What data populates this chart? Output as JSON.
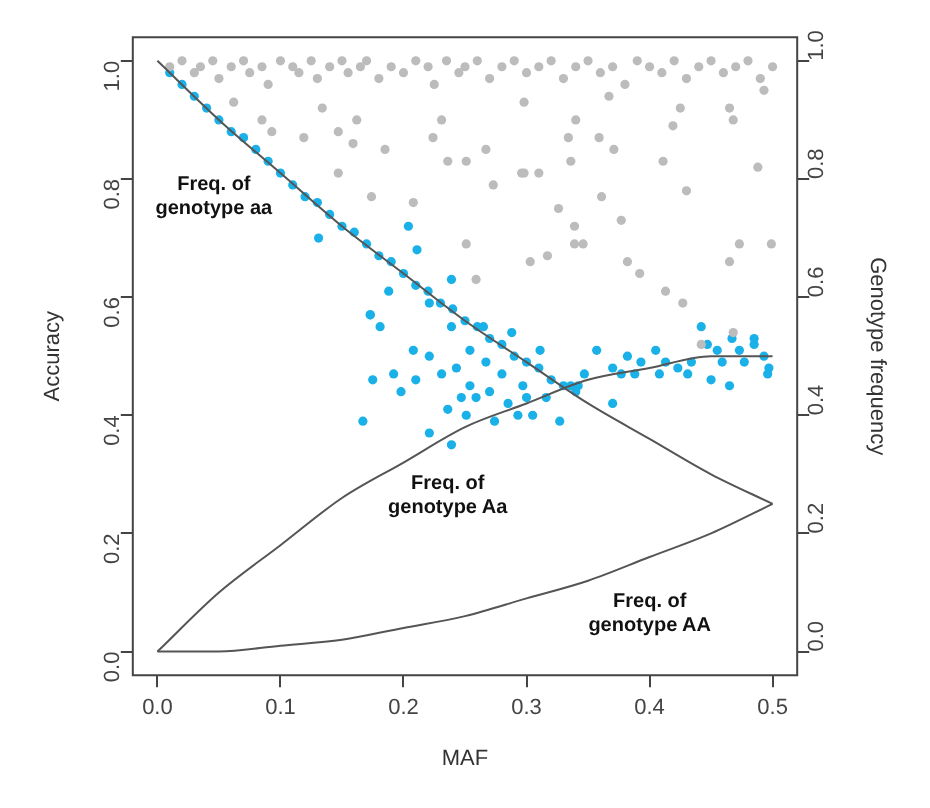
{
  "chart_data": {
    "type": "scatter",
    "xlabel": "MAF",
    "ylabel": "Accuracy",
    "y2label": "Genotype frequency",
    "xlim": [
      -0.02,
      0.52
    ],
    "ylim": [
      -0.04,
      1.04
    ],
    "y2lim": [
      -0.04,
      1.04
    ],
    "xticks": [
      {
        "value": 0,
        "label": "0.0"
      },
      0.1,
      0.2,
      0.3,
      0.4,
      0.5
    ],
    "yticks": [
      {
        "value": 0,
        "label": "0.0"
      },
      0.2,
      0.4,
      0.6,
      0.8,
      {
        "value": 1,
        "label": "1.0"
      }
    ],
    "y2ticks": [
      {
        "value": 0,
        "label": "0.0"
      },
      0.2,
      0.4,
      0.6,
      0.8,
      {
        "value": 1,
        "label": "1.0"
      }
    ],
    "grid": false,
    "legend": false,
    "marker": "circle",
    "series": [
      {
        "color": "#bcbcbc",
        "x": [
          0.01,
          0.02,
          0.03,
          0.035,
          0.045,
          0.05,
          0.06,
          0.07,
          0.075,
          0.085,
          0.09,
          0.1,
          0.11,
          0.115,
          0.125,
          0.13,
          0.14,
          0.15,
          0.155,
          0.165,
          0.17,
          0.18,
          0.19,
          0.2,
          0.21,
          0.22,
          0.225,
          0.235,
          0.245,
          0.25,
          0.26,
          0.27,
          0.28,
          0.29,
          0.3,
          0.31,
          0.32,
          0.33,
          0.34,
          0.35,
          0.36,
          0.37,
          0.38,
          0.39,
          0.4,
          0.41,
          0.42,
          0.43,
          0.44,
          0.45,
          0.46,
          0.47,
          0.48,
          0.49,
          0.5,
          0.062,
          0.085,
          0.093,
          0.119,
          0.134,
          0.162,
          0.147,
          0.185,
          0.159,
          0.147,
          0.174,
          0.208,
          0.231,
          0.224,
          0.236,
          0.251,
          0.267,
          0.273,
          0.251,
          0.259,
          0.296,
          0.298,
          0.298,
          0.31,
          0.326,
          0.339,
          0.339,
          0.346,
          0.303,
          0.317,
          0.336,
          0.334,
          0.34,
          0.359,
          0.371,
          0.361,
          0.377,
          0.382,
          0.392,
          0.367,
          0.411,
          0.419,
          0.425,
          0.43,
          0.413,
          0.427,
          0.465,
          0.473,
          0.465,
          0.468,
          0.488,
          0.499,
          0.493,
          0.468,
          0.442
        ],
        "values": [
          0.99,
          1.0,
          0.98,
          0.99,
          1.0,
          0.97,
          0.99,
          1.0,
          0.98,
          0.99,
          0.96,
          1.0,
          0.99,
          0.98,
          1.0,
          0.97,
          0.99,
          1.0,
          0.98,
          0.99,
          1.0,
          0.97,
          0.99,
          0.98,
          1.0,
          0.99,
          0.96,
          1.0,
          0.98,
          0.99,
          1.0,
          0.97,
          0.99,
          1.0,
          0.98,
          0.99,
          1.0,
          0.97,
          0.99,
          1.0,
          0.98,
          0.99,
          0.96,
          1.0,
          0.99,
          0.98,
          1.0,
          0.97,
          0.99,
          1.0,
          0.98,
          0.99,
          1.0,
          0.97,
          0.99,
          0.93,
          0.9,
          0.88,
          0.87,
          0.92,
          0.9,
          0.88,
          0.85,
          0.86,
          0.81,
          0.77,
          0.76,
          0.9,
          0.87,
          0.83,
          0.83,
          0.85,
          0.79,
          0.69,
          0.63,
          0.81,
          0.93,
          0.81,
          0.81,
          0.75,
          0.72,
          0.69,
          0.69,
          0.66,
          0.67,
          0.83,
          0.87,
          0.9,
          0.87,
          0.85,
          0.77,
          0.73,
          0.66,
          0.64,
          0.94,
          0.83,
          0.89,
          0.92,
          0.78,
          0.61,
          0.59,
          0.66,
          0.69,
          0.92,
          0.9,
          0.82,
          0.69,
          0.95,
          0.54,
          0.52
        ]
      },
      {
        "color": "#1ab0e8",
        "x": [
          0.01,
          0.02,
          0.03,
          0.04,
          0.05,
          0.06,
          0.07,
          0.08,
          0.09,
          0.1,
          0.11,
          0.12,
          0.13,
          0.14,
          0.15,
          0.16,
          0.17,
          0.18,
          0.19,
          0.2,
          0.21,
          0.22,
          0.23,
          0.24,
          0.25,
          0.26,
          0.27,
          0.28,
          0.29,
          0.3,
          0.31,
          0.32,
          0.33,
          0.34,
          0.131,
          0.173,
          0.188,
          0.211,
          0.204,
          0.221,
          0.239,
          0.167,
          0.173,
          0.181,
          0.175,
          0.192,
          0.198,
          0.21,
          0.208,
          0.221,
          0.221,
          0.231,
          0.236,
          0.239,
          0.243,
          0.247,
          0.251,
          0.254,
          0.259,
          0.267,
          0.27,
          0.274,
          0.28,
          0.285,
          0.293,
          0.297,
          0.305,
          0.311,
          0.239,
          0.254,
          0.265,
          0.288,
          0.327,
          0.316,
          0.3,
          0.357,
          0.37,
          0.382,
          0.393,
          0.405,
          0.408,
          0.423,
          0.434,
          0.442,
          0.447,
          0.45,
          0.459,
          0.467,
          0.465,
          0.477,
          0.485,
          0.493,
          0.496,
          0.497,
          0.37,
          0.347,
          0.342,
          0.336,
          0.377,
          0.413,
          0.455,
          0.473,
          0.485,
          0.388,
          0.431
        ],
        "values": [
          0.98,
          0.96,
          0.94,
          0.92,
          0.9,
          0.88,
          0.87,
          0.85,
          0.83,
          0.81,
          0.79,
          0.77,
          0.76,
          0.74,
          0.72,
          0.71,
          0.69,
          0.67,
          0.66,
          0.64,
          0.62,
          0.61,
          0.59,
          0.58,
          0.56,
          0.55,
          0.53,
          0.52,
          0.5,
          0.49,
          0.48,
          0.46,
          0.45,
          0.44,
          0.7,
          0.57,
          0.61,
          0.68,
          0.72,
          0.59,
          0.63,
          0.39,
          0.57,
          0.55,
          0.46,
          0.47,
          0.44,
          0.46,
          0.51,
          0.5,
          0.37,
          0.47,
          0.41,
          0.35,
          0.48,
          0.43,
          0.4,
          0.45,
          0.43,
          0.49,
          0.44,
          0.39,
          0.47,
          0.42,
          0.4,
          0.45,
          0.4,
          0.51,
          0.55,
          0.51,
          0.55,
          0.54,
          0.39,
          0.43,
          0.43,
          0.51,
          0.48,
          0.5,
          0.49,
          0.51,
          0.47,
          0.48,
          0.49,
          0.55,
          0.52,
          0.46,
          0.49,
          0.53,
          0.45,
          0.49,
          0.53,
          0.5,
          0.47,
          0.48,
          0.42,
          0.47,
          0.45,
          0.45,
          0.47,
          0.49,
          0.51,
          0.51,
          0.52,
          0.47,
          0.47
        ]
      },
      {
        "type": "line",
        "color": "#555555",
        "marker": "none",
        "x": [
          0,
          0.05,
          0.1,
          0.15,
          0.2,
          0.25,
          0.3,
          0.35,
          0.4,
          0.45,
          0.5
        ],
        "values": [
          1,
          0.9,
          0.81,
          0.72,
          0.64,
          0.56,
          0.49,
          0.42,
          0.36,
          0.3,
          0.25
        ]
      },
      {
        "type": "line",
        "color": "#555555",
        "marker": "none",
        "x": [
          0,
          0.05,
          0.1,
          0.15,
          0.2,
          0.25,
          0.3,
          0.35,
          0.4,
          0.45,
          0.5
        ],
        "values": [
          0,
          0.1,
          0.18,
          0.26,
          0.32,
          0.38,
          0.42,
          0.46,
          0.48,
          0.5,
          0.5
        ]
      },
      {
        "type": "line",
        "color": "#555555",
        "marker": "none",
        "x": [
          0,
          0.05,
          0.1,
          0.15,
          0.2,
          0.25,
          0.3,
          0.35,
          0.4,
          0.45,
          0.5
        ],
        "values": [
          0,
          0,
          0.01,
          0.02,
          0.04,
          0.06,
          0.09,
          0.12,
          0.16,
          0.2,
          0.25
        ]
      }
    ],
    "annotations": [
      "Freq. of\ngenotype aa",
      "Freq. of\ngenotype Aa",
      "Freq. of\ngenotype AA"
    ]
  }
}
